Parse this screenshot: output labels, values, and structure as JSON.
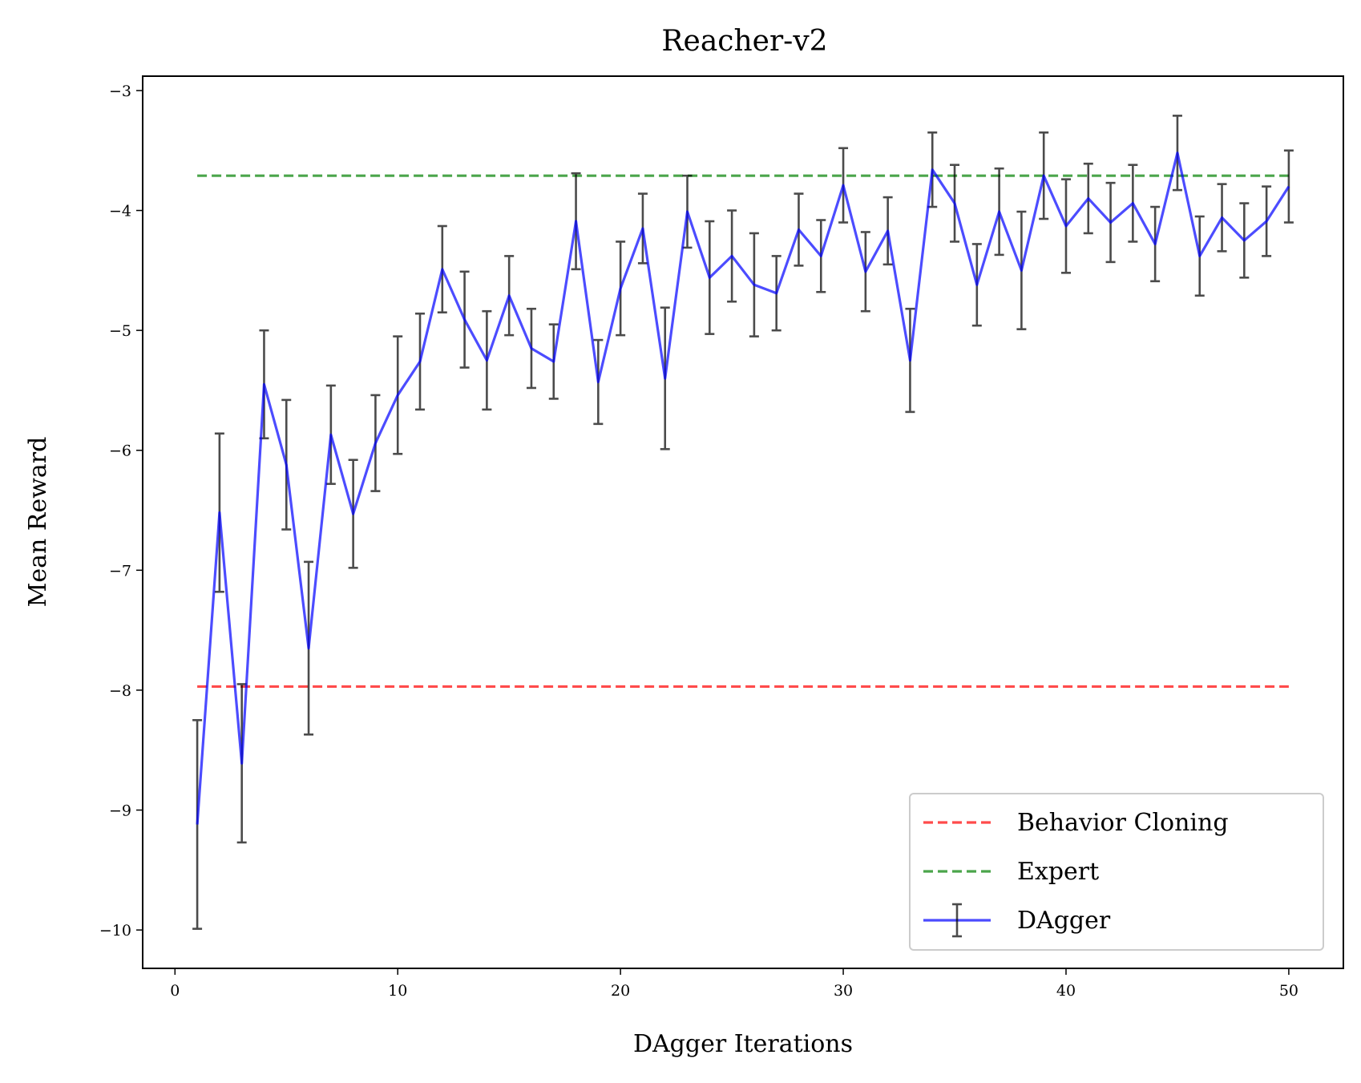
{
  "chart_data": {
    "type": "line",
    "title": "Reacher-v2",
    "xlabel": "DAgger Iterations",
    "ylabel": "Mean Reward",
    "xlim": [
      -1.45,
      52.45
    ],
    "ylim": [
      -10.32,
      -2.88
    ],
    "xticks": [
      0,
      10,
      20,
      30,
      40,
      50
    ],
    "xtick_labels": [
      "0",
      "10",
      "20",
      "30",
      "40",
      "50"
    ],
    "yticks": [
      -3,
      -4,
      -5,
      -6,
      -7,
      -8,
      -9,
      -10
    ],
    "ytick_labels": [
      "−3",
      "−4",
      "−5",
      "−6",
      "−7",
      "−8",
      "−9",
      "−10"
    ],
    "grid": false,
    "legend_position": "lower-right",
    "series": [
      {
        "name": "Behavior Cloning",
        "style": "dashed",
        "color": "#ff0000",
        "x": [
          1,
          50
        ],
        "values": [
          -7.97,
          -7.97
        ]
      },
      {
        "name": "Expert",
        "style": "dashed",
        "color": "#008000",
        "x": [
          1,
          50
        ],
        "values": [
          -3.71,
          -3.71
        ]
      },
      {
        "name": "DAgger",
        "style": "solid-errorbar",
        "color": "#0000ff",
        "errorbar_color": "#000000",
        "x": [
          1,
          2,
          3,
          4,
          5,
          6,
          7,
          8,
          9,
          10,
          11,
          12,
          13,
          14,
          15,
          16,
          17,
          18,
          19,
          20,
          21,
          22,
          23,
          24,
          25,
          26,
          27,
          28,
          29,
          30,
          31,
          32,
          33,
          34,
          35,
          36,
          37,
          38,
          39,
          40,
          41,
          42,
          43,
          44,
          45,
          46,
          47,
          48,
          49,
          50
        ],
        "values": [
          -9.12,
          -6.52,
          -8.61,
          -5.45,
          -6.12,
          -7.65,
          -5.87,
          -6.53,
          -5.94,
          -5.54,
          -5.26,
          -4.49,
          -4.91,
          -5.25,
          -4.71,
          -5.15,
          -5.26,
          -4.09,
          -5.43,
          -4.65,
          -4.15,
          -5.4,
          -4.01,
          -4.56,
          -4.38,
          -4.62,
          -4.69,
          -4.16,
          -4.38,
          -3.79,
          -4.51,
          -4.17,
          -5.25,
          -3.66,
          -3.94,
          -4.62,
          -4.01,
          -4.5,
          -3.71,
          -4.13,
          -3.9,
          -4.1,
          -3.94,
          -4.28,
          -3.52,
          -4.38,
          -4.06,
          -4.25,
          -4.09,
          -3.8
        ],
        "errors": [
          0.87,
          0.66,
          0.66,
          0.45,
          0.54,
          0.72,
          0.41,
          0.45,
          0.4,
          0.49,
          0.4,
          0.36,
          0.4,
          0.41,
          0.33,
          0.33,
          0.31,
          0.4,
          0.35,
          0.39,
          0.29,
          0.59,
          0.3,
          0.47,
          0.38,
          0.43,
          0.31,
          0.3,
          0.3,
          0.31,
          0.33,
          0.28,
          0.43,
          0.31,
          0.32,
          0.34,
          0.36,
          0.49,
          0.36,
          0.39,
          0.29,
          0.33,
          0.32,
          0.31,
          0.31,
          0.33,
          0.28,
          0.31,
          0.29,
          0.3
        ]
      }
    ]
  }
}
